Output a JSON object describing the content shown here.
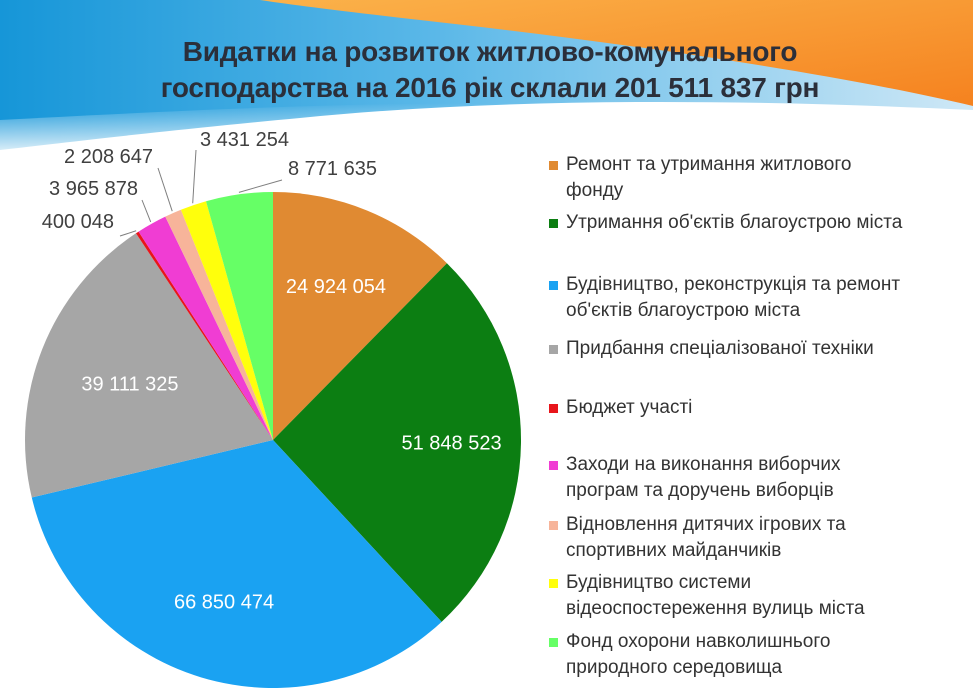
{
  "title": {
    "line1": "Видатки на розвиток житлово-комунального",
    "line2": "господарства на 2016 рік  склали  201 511 837 грн"
  },
  "chart_data": {
    "type": "pie",
    "title": "Видатки на розвиток житлово-комунального господарства на 2016 рік  склали  201 511 837 грн",
    "start_angle_deg": 0,
    "direction": "clockwise",
    "legend_position": "right",
    "slices": [
      {
        "label": "Ремонт та утримання житлового фонду",
        "lines": [
          "Ремонт та утримання житлового",
          "фонду"
        ],
        "value": 24924054,
        "value_label": "24 924 054",
        "color": "#E08A32",
        "label_placement": "inside"
      },
      {
        "label": "Утримання об'єктів благоустрою міста",
        "lines": [
          "Утримання об'єктів благоустрою міста"
        ],
        "value": 51848523,
        "value_label": "51 848 523",
        "color": "#0C7E12",
        "label_placement": "inside"
      },
      {
        "label": "Будівництво, реконструкція та ремонт об'єктів благоустрою міста",
        "lines": [
          "Будівництво, реконструкція та ремонт",
          "об'єктів благоустрою міста"
        ],
        "value": 66850474,
        "value_label": "66 850 474",
        "color": "#1AA2F2",
        "label_placement": "inside"
      },
      {
        "label": "Придбання спеціалізованої техніки",
        "lines": [
          "Придбання спеціалізованої техніки"
        ],
        "value": 39111325,
        "value_label": "39 111 325",
        "color": "#A6A6A6",
        "label_placement": "inside"
      },
      {
        "label": "Бюджет участі",
        "lines": [
          "Бюджет участі"
        ],
        "value": 400048,
        "value_label": "400 048",
        "color": "#E8151B",
        "label_placement": "outside"
      },
      {
        "label": "Заходи на виконання виборчих програм та доручень виборців",
        "lines": [
          "Заходи на виконання виборчих",
          "програм та доручень виборців"
        ],
        "value": 3965878,
        "value_label": "3 965 878",
        "color": "#F03DD3",
        "label_placement": "outside"
      },
      {
        "label": "Відновлення дитячих ігрових та спортивних майданчиків",
        "lines": [
          "Відновлення  дитячих ігрових  та",
          "спортивних майданчиків"
        ],
        "value": 2208647,
        "value_label": "2 208 647",
        "color": "#F7B49A",
        "label_placement": "outside"
      },
      {
        "label": "Будівництво системи відеоспостереження вулиць міста",
        "lines": [
          "Будівництво системи",
          "відеоспостереження вулиць міста"
        ],
        "value": 3431254,
        "value_label": "3 431 254",
        "color": "#FFFF0C",
        "label_placement": "outside"
      },
      {
        "label": "Фонд охорони навколишнього природного середовища",
        "lines": [
          "Фонд охорони навколишнього",
          "природного середовища"
        ],
        "value": 8771635,
        "value_label": "8 771 635",
        "color": "#66FF66",
        "label_placement": "outside"
      }
    ]
  }
}
